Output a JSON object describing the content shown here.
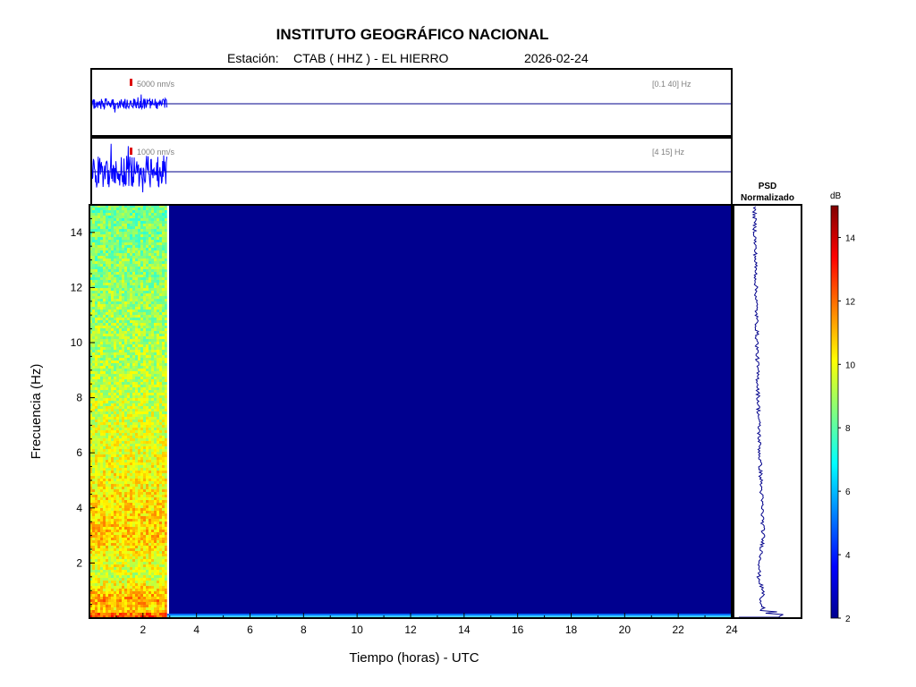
{
  "header": {
    "institute": "INSTITUTO GEOGRÁFICO NACIONAL",
    "station_label": "Estación:",
    "station": "CTAB ( HHZ ) - EL HIERRO",
    "date": "2026-02-24"
  },
  "chart_data": [
    {
      "type": "line",
      "panel": "seismogram-broadband",
      "scale_label": "5000 nm/s",
      "filter_label": "[0.1 40] Hz",
      "data_end_hour": 2.9,
      "xlim": [
        0,
        24
      ],
      "color": "#0000ff"
    },
    {
      "type": "line",
      "panel": "seismogram-filtered",
      "scale_label": "1000 nm/s",
      "filter_label": "[4 15] Hz",
      "data_end_hour": 2.9,
      "xlim": [
        0,
        24
      ],
      "color": "#0000ff"
    },
    {
      "type": "heatmap",
      "panel": "spectrogram",
      "xlabel": "Tiempo (horas) - UTC",
      "ylabel": "Frecuencia  (Hz)",
      "xlim": [
        0,
        24
      ],
      "ylim": [
        0,
        15
      ],
      "x_ticks": [
        2,
        4,
        6,
        8,
        10,
        12,
        14,
        16,
        18,
        20,
        22,
        24
      ],
      "y_ticks": [
        2,
        4,
        6,
        8,
        10,
        12,
        14
      ],
      "data_end_hour": 2.9,
      "colormap": "jet",
      "clim": [
        2,
        15
      ],
      "band_profile": [
        {
          "freq": 0.1,
          "db": 12.5
        },
        {
          "freq": 0.3,
          "db": 10.5
        },
        {
          "freq": 0.6,
          "db": 11.5
        },
        {
          "freq": 1.5,
          "db": 9.5
        },
        {
          "freq": 3.0,
          "db": 10.8
        },
        {
          "freq": 4.0,
          "db": 10.5
        },
        {
          "freq": 6.0,
          "db": 9.8
        },
        {
          "freq": 9.0,
          "db": 9.2
        },
        {
          "freq": 12.0,
          "db": 8.8
        },
        {
          "freq": 15.0,
          "db": 8.3
        }
      ]
    },
    {
      "type": "line",
      "panel": "psd",
      "title_line1": "PSD",
      "title_line2": "Normalizado",
      "ylim": [
        0,
        15
      ],
      "color": "#00008b"
    },
    {
      "type": "colorbar",
      "panel": "colorbar",
      "unit": "dB",
      "range": [
        2,
        15
      ],
      "ticks": [
        2,
        4,
        6,
        8,
        10,
        12,
        14
      ]
    }
  ]
}
